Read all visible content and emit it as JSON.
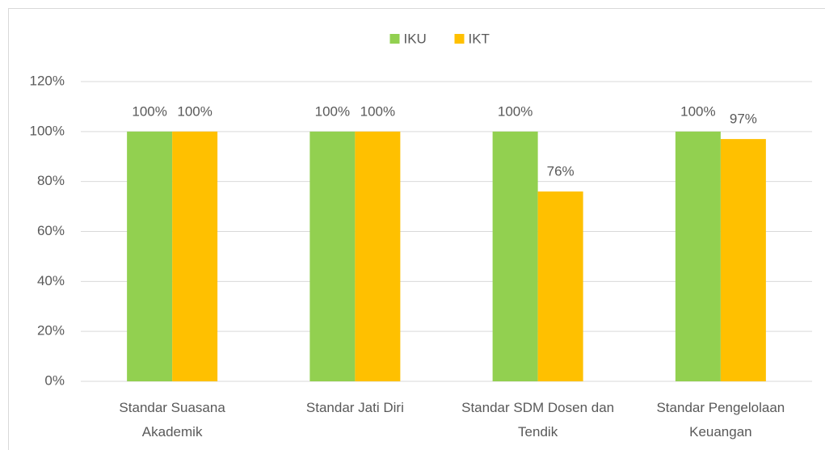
{
  "chart_data": {
    "type": "bar",
    "categories": [
      "Standar Suasana Akademik",
      "Standar Jati Diri",
      "Standar SDM Dosen dan Tendik",
      "Standar Pengelolaan Keuangan"
    ],
    "series": [
      {
        "name": "IKU",
        "color": "#92d050",
        "values": [
          100,
          100,
          100,
          100
        ],
        "value_labels": [
          "100%",
          "100%",
          "100%",
          "100%"
        ]
      },
      {
        "name": "IKT",
        "color": "#ffc000",
        "values": [
          100,
          100,
          76,
          97
        ],
        "value_labels": [
          "100%",
          "100%",
          "76%",
          "97%"
        ]
      }
    ],
    "ylim": [
      0,
      120
    ],
    "yticks": [
      {
        "value": 0,
        "label": "0%"
      },
      {
        "value": 20,
        "label": "20%"
      },
      {
        "value": 40,
        "label": "40%"
      },
      {
        "value": 60,
        "label": "60%"
      },
      {
        "value": 80,
        "label": "80%"
      },
      {
        "value": 100,
        "label": "100%"
      },
      {
        "value": 120,
        "label": "120%"
      }
    ],
    "grid": true,
    "legend": "top"
  }
}
